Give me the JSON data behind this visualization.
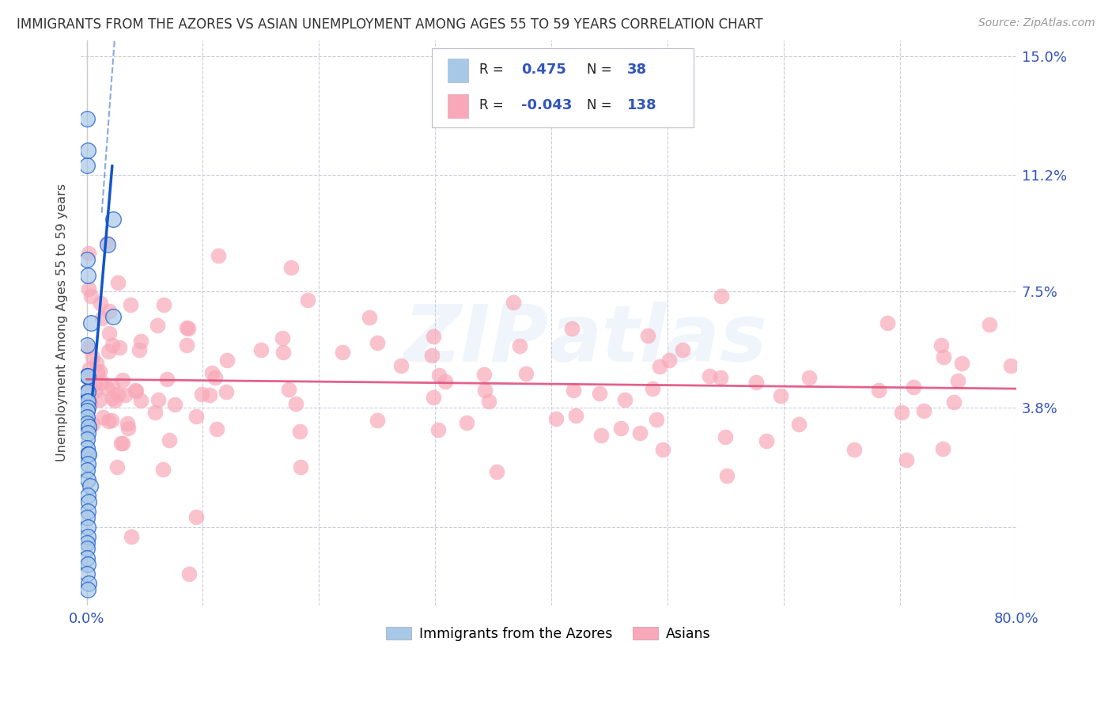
{
  "title": "IMMIGRANTS FROM THE AZORES VS ASIAN UNEMPLOYMENT AMONG AGES 55 TO 59 YEARS CORRELATION CHART",
  "source": "Source: ZipAtlas.com",
  "ylabel": "Unemployment Among Ages 55 to 59 years",
  "ytick_positions": [
    0.0,
    0.038,
    0.075,
    0.112,
    0.15
  ],
  "ytick_labels": [
    "",
    "3.8%",
    "7.5%",
    "11.2%",
    "15.0%"
  ],
  "xtick_positions": [
    0.0,
    0.1,
    0.2,
    0.3,
    0.4,
    0.5,
    0.6,
    0.7,
    0.8
  ],
  "xtick_labels": [
    "0.0%",
    "",
    "",
    "",
    "",
    "",
    "",
    "",
    "80.0%"
  ],
  "blue_R": "0.475",
  "blue_N": "38",
  "pink_R": "-0.043",
  "pink_N": "138",
  "blue_color": "#A8C8E8",
  "pink_color": "#F8A8B8",
  "blue_line_color": "#1155CC",
  "pink_line_color": "#E05080",
  "background_color": "#FFFFFF",
  "xmin": -0.005,
  "xmax": 0.8,
  "ymin": -0.025,
  "ymax": 0.155,
  "legend_R_color": "#222222",
  "legend_val_color": "#3355BB"
}
